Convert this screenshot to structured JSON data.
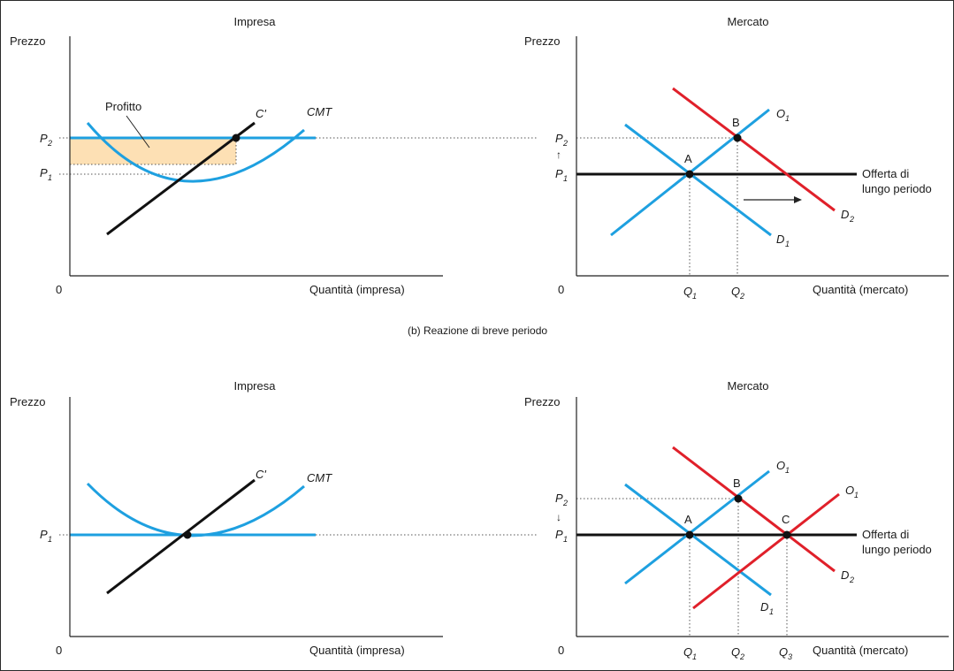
{
  "caption_b": "(b) Reazione di breve periodo",
  "top": {
    "firm": {
      "title": "Impresa",
      "y_axis": "Prezzo",
      "x_axis": "Quantità (impresa)",
      "origin": "0",
      "price_labels": [
        {
          "main": "P",
          "sub": "2"
        },
        {
          "main": "P",
          "sub": "1"
        }
      ],
      "profit_label": "Profitto",
      "curve_mc": "C'",
      "curve_atc": "CMT"
    },
    "market": {
      "title": "Mercato",
      "y_axis": "Prezzo",
      "x_axis": "Quantità (mercato)",
      "origin": "0",
      "price_labels": [
        {
          "main": "P",
          "sub": "2"
        },
        {
          "main": "P",
          "sub": "1"
        }
      ],
      "points": [
        "A",
        "B"
      ],
      "supply": {
        "main": "O",
        "sub": "1"
      },
      "demand1": {
        "main": "D",
        "sub": "1"
      },
      "demand2": {
        "main": "D",
        "sub": "2"
      },
      "lr_supply": [
        "Offerta di",
        "lungo periodo"
      ],
      "q_labels": [
        {
          "main": "Q",
          "sub": "1"
        },
        {
          "main": "Q",
          "sub": "2"
        }
      ]
    }
  },
  "bottom": {
    "firm": {
      "title": "Impresa",
      "y_axis": "Prezzo",
      "x_axis": "Quantità (impresa)",
      "origin": "0",
      "price_labels": [
        {
          "main": "P",
          "sub": "1"
        }
      ],
      "curve_mc": "C'",
      "curve_atc": "CMT"
    },
    "market": {
      "title": "Mercato",
      "y_axis": "Prezzo",
      "x_axis": "Quantità (mercato)",
      "origin": "0",
      "price_labels": [
        {
          "main": "P",
          "sub": "2"
        },
        {
          "main": "P",
          "sub": "1"
        }
      ],
      "points": [
        "A",
        "B",
        "C"
      ],
      "supply1": {
        "main": "O",
        "sub": "1"
      },
      "supply2": {
        "main": "O",
        "sub": "1"
      },
      "demand1": {
        "main": "D",
        "sub": "1"
      },
      "demand2": {
        "main": "D",
        "sub": "2"
      },
      "lr_supply": [
        "Offerta di",
        "lungo periodo"
      ],
      "q_labels": [
        {
          "main": "Q",
          "sub": "1"
        },
        {
          "main": "Q",
          "sub": "2"
        },
        {
          "main": "Q",
          "sub": "3"
        }
      ]
    }
  }
}
